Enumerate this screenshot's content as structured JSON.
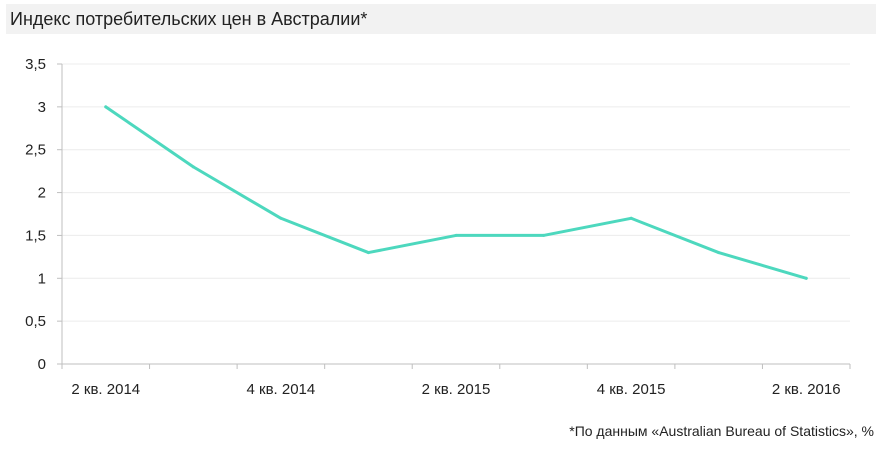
{
  "title": "Индекс потребительских цен в Австралии*",
  "footnote": "*По данным «Australian Bureau of Statistics», %",
  "chart_data": {
    "type": "line",
    "title": "Индекс потребительских цен в Австралии*",
    "xlabel": "",
    "ylabel": "",
    "categories": [
      "",
      "",
      "",
      "",
      "",
      "",
      "",
      "",
      ""
    ],
    "x_tick_labels": [
      "2 кв. 2014",
      "4 кв. 2014",
      "2 кв. 2015",
      "4 кв. 2015",
      "2 кв. 2016"
    ],
    "y_tick_labels": [
      "0",
      "0,5",
      "1",
      "1,5",
      "2",
      "2,5",
      "3",
      "3,5"
    ],
    "ylim": [
      0,
      3.5
    ],
    "grid": true,
    "legend": "none",
    "series": [
      {
        "values": [
          3.0,
          2.3,
          1.7,
          1.3,
          1.5,
          1.5,
          1.7,
          1.3,
          1.0
        ],
        "color": "#4dd8be"
      }
    ]
  }
}
